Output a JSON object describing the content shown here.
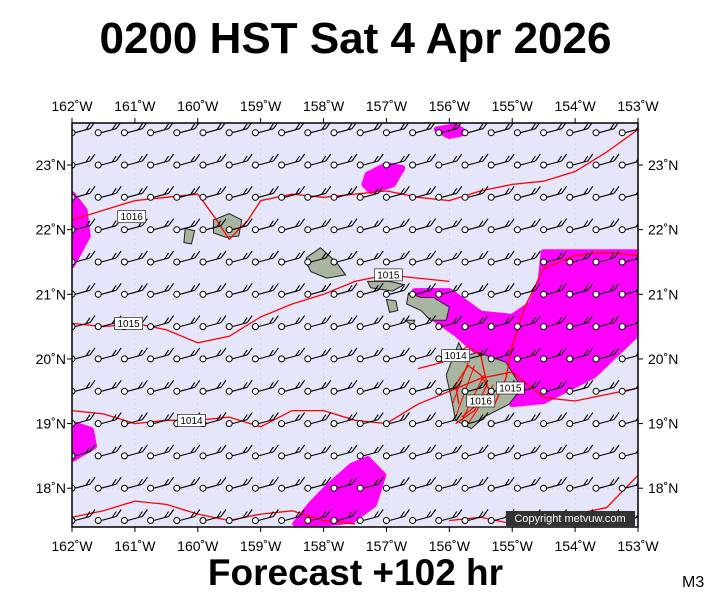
{
  "title": "0200 HST Sat 4 Apr 2026",
  "footer": "Forecast +102 hr",
  "model_tag": "M3",
  "copyright": "Copyright metvuw.com",
  "colors": {
    "ocean": "#e6e6fa",
    "precipitation": "#ff00ff",
    "isobar": "#ff0000",
    "land": "#a8b5a0",
    "wind": "#000000"
  },
  "map": {
    "lon_range": [
      -162,
      -153
    ],
    "lat_range": [
      17.4,
      23.65
    ],
    "lon_labels": [
      {
        "lon": -162,
        "text": "162˚W"
      },
      {
        "lon": -161,
        "text": "161˚W"
      },
      {
        "lon": -160,
        "text": "160˚W"
      },
      {
        "lon": -159,
        "text": "159˚W"
      },
      {
        "lon": -158,
        "text": "158˚W"
      },
      {
        "lon": -157,
        "text": "157˚W"
      },
      {
        "lon": -156,
        "text": "156˚W"
      },
      {
        "lon": -155,
        "text": "155˚W"
      },
      {
        "lon": -154,
        "text": "154˚W"
      },
      {
        "lon": -153,
        "text": "153˚W"
      }
    ],
    "lat_labels": [
      {
        "lat": 18,
        "text": "18˚N"
      },
      {
        "lat": 19,
        "text": "19˚N"
      },
      {
        "lat": 20,
        "text": "20˚N"
      },
      {
        "lat": 21,
        "text": "21˚N"
      },
      {
        "lat": 22,
        "text": "22˚N"
      },
      {
        "lat": 23,
        "text": "23˚N"
      }
    ]
  },
  "isobars": [
    {
      "label": "1016",
      "label_at": [
        -161.05,
        22.2
      ],
      "points": [
        [
          -162,
          22.15
        ],
        [
          -161.5,
          22.3
        ],
        [
          -161,
          22.45
        ],
        [
          -160.5,
          22.5
        ],
        [
          -160,
          22.55
        ],
        [
          -159.7,
          22.15
        ],
        [
          -159.5,
          21.85
        ],
        [
          -159.2,
          22.15
        ],
        [
          -159,
          22.45
        ],
        [
          -158.5,
          22.55
        ],
        [
          -158,
          22.5
        ],
        [
          -157.5,
          22.55
        ],
        [
          -157,
          22.6
        ],
        [
          -156.5,
          22.5
        ],
        [
          -156,
          22.45
        ],
        [
          -155.5,
          22.6
        ],
        [
          -155,
          22.7
        ],
        [
          -154.5,
          22.75
        ],
        [
          -154,
          22.9
        ],
        [
          -153.5,
          23.2
        ],
        [
          -153,
          23.55
        ]
      ]
    },
    {
      "label": "1015",
      "label_at": [
        -161.1,
        20.55
      ],
      "points": [
        [
          -162,
          20.55
        ],
        [
          -161.5,
          20.5
        ],
        [
          -161,
          20.55
        ],
        [
          -160.5,
          20.45
        ],
        [
          -160,
          20.25
        ],
        [
          -159.5,
          20.35
        ],
        [
          -159,
          20.65
        ],
        [
          -158.5,
          20.85
        ],
        [
          -158,
          21.0
        ],
        [
          -157.5,
          21.2
        ],
        [
          -157,
          21.3
        ],
        [
          -156.5,
          21.25
        ],
        [
          -156,
          21.2
        ]
      ]
    },
    {
      "label": "1015",
      "label_at": [
        -156.97,
        21.3
      ],
      "points": []
    },
    {
      "label": "1015",
      "label_at": [
        -155.03,
        19.55
      ],
      "points": [
        [
          -155.3,
          19.25
        ],
        [
          -155.1,
          19.7
        ],
        [
          -155.0,
          20.2
        ],
        [
          -154.8,
          20.8
        ],
        [
          -154.5,
          21.4
        ],
        [
          -154,
          21.6
        ],
        [
          -153.5,
          21.65
        ],
        [
          -153,
          21.6
        ]
      ]
    },
    {
      "label": "1014",
      "label_at": [
        -160.1,
        19.05
      ],
      "points": [
        [
          -162,
          19.2
        ],
        [
          -161.5,
          19.15
        ],
        [
          -161,
          19.0
        ],
        [
          -160.5,
          19.05
        ],
        [
          -160,
          19.05
        ],
        [
          -159.5,
          19.1
        ],
        [
          -159,
          18.95
        ],
        [
          -158.5,
          19.2
        ],
        [
          -158,
          19.2
        ],
        [
          -157.5,
          19.05
        ],
        [
          -157,
          19.0
        ],
        [
          -156.5,
          19.3
        ],
        [
          -156,
          19.5
        ],
        [
          -155.5,
          19.7
        ],
        [
          -155,
          19.8
        ],
        [
          -154.5,
          19.4
        ],
        [
          -154,
          19.35
        ],
        [
          -153.5,
          19.45
        ],
        [
          -153,
          19.55
        ]
      ]
    },
    {
      "label": "1014",
      "label_at": [
        -155.9,
        20.05
      ],
      "points": [
        [
          -156.5,
          19.85
        ],
        [
          -156.1,
          19.95
        ],
        [
          -155.7,
          20.2
        ],
        [
          -155.5,
          20.05
        ],
        [
          -155.4,
          19.6
        ],
        [
          -155.6,
          19.2
        ],
        [
          -155.9,
          19.0
        ]
      ]
    },
    {
      "label": "1016",
      "label_at": [
        -155.5,
        19.35
      ],
      "points": [
        [
          -155.8,
          19.1
        ],
        [
          -155.55,
          19.3
        ],
        [
          -155.35,
          19.5
        ],
        [
          -155.5,
          19.75
        ],
        [
          -155.7,
          19.9
        ],
        [
          -155.9,
          19.6
        ],
        [
          -155.85,
          19.3
        ]
      ]
    },
    {
      "label": "",
      "label_at": null,
      "points": [
        [
          -162,
          17.55
        ],
        [
          -161.5,
          17.65
        ],
        [
          -161,
          17.8
        ],
        [
          -160.5,
          17.75
        ],
        [
          -160,
          17.6
        ],
        [
          -159.5,
          17.5
        ],
        [
          -159,
          17.6
        ],
        [
          -158.5,
          17.65
        ],
        [
          -158,
          17.5
        ],
        [
          -157.5,
          17.45
        ]
      ]
    },
    {
      "label": "",
      "label_at": null,
      "points": [
        [
          -156,
          17.5
        ],
        [
          -155.5,
          17.55
        ],
        [
          -155,
          17.45
        ],
        [
          -154.5,
          17.5
        ],
        [
          -154,
          17.6
        ],
        [
          -153.5,
          17.7
        ],
        [
          -153.2,
          18.0
        ],
        [
          -153,
          18.2
        ]
      ]
    }
  ],
  "precip_regions": [
    [
      [
        -156.2,
        23.55
      ],
      [
        -155.9,
        23.6
      ],
      [
        -155.75,
        23.5
      ],
      [
        -156.0,
        23.45
      ]
    ],
    [
      [
        -157.3,
        22.85
      ],
      [
        -157.0,
        23.0
      ],
      [
        -156.75,
        22.95
      ],
      [
        -156.9,
        22.7
      ],
      [
        -157.25,
        22.6
      ],
      [
        -157.35,
        22.7
      ]
    ],
    [
      [
        -162,
        22.55
      ],
      [
        -161.8,
        22.3
      ],
      [
        -161.75,
        21.9
      ],
      [
        -162,
        21.45
      ]
    ],
    [
      [
        -154.5,
        21.65
      ],
      [
        -153.0,
        21.65
      ],
      [
        -153.0,
        20.4
      ],
      [
        -153.7,
        19.75
      ],
      [
        -154.2,
        19.5
      ],
      [
        -154.5,
        19.35
      ],
      [
        -155.0,
        19.3
      ],
      [
        -155.25,
        19.8
      ],
      [
        -155.55,
        20.1
      ],
      [
        -155.9,
        20.4
      ],
      [
        -156.2,
        20.6
      ],
      [
        -156.5,
        20.85
      ],
      [
        -156.55,
        21.05
      ],
      [
        -156.0,
        21.05
      ],
      [
        -155.5,
        20.7
      ],
      [
        -155.0,
        20.65
      ],
      [
        -154.7,
        20.85
      ],
      [
        -154.55,
        21.2
      ]
    ],
    [
      [
        -162,
        19.0
      ],
      [
        -161.7,
        18.9
      ],
      [
        -161.65,
        18.65
      ],
      [
        -162,
        18.45
      ]
    ],
    [
      [
        -158.45,
        17.45
      ],
      [
        -158.2,
        17.75
      ],
      [
        -157.9,
        18.05
      ],
      [
        -157.55,
        18.35
      ],
      [
        -157.3,
        18.45
      ],
      [
        -157.05,
        18.2
      ],
      [
        -157.2,
        17.75
      ],
      [
        -157.55,
        17.5
      ],
      [
        -158.0,
        17.45
      ]
    ]
  ],
  "islands": [
    {
      "name": "kauai",
      "points": [
        [
          -159.75,
          22.15
        ],
        [
          -159.5,
          22.25
        ],
        [
          -159.3,
          22.15
        ],
        [
          -159.35,
          21.9
        ],
        [
          -159.55,
          21.88
        ],
        [
          -159.75,
          21.95
        ]
      ]
    },
    {
      "name": "niihau",
      "points": [
        [
          -160.2,
          22.02
        ],
        [
          -160.05,
          21.98
        ],
        [
          -160.1,
          21.78
        ],
        [
          -160.22,
          21.8
        ]
      ]
    },
    {
      "name": "oahu",
      "points": [
        [
          -158.27,
          21.57
        ],
        [
          -158.05,
          21.72
        ],
        [
          -157.8,
          21.5
        ],
        [
          -157.65,
          21.3
        ],
        [
          -157.95,
          21.25
        ],
        [
          -158.2,
          21.35
        ],
        [
          -158.28,
          21.5
        ]
      ]
    },
    {
      "name": "molokai",
      "points": [
        [
          -157.3,
          21.2
        ],
        [
          -156.95,
          21.2
        ],
        [
          -156.72,
          21.15
        ],
        [
          -156.9,
          21.05
        ],
        [
          -157.25,
          21.1
        ]
      ]
    },
    {
      "name": "lanai",
      "points": [
        [
          -157.0,
          20.92
        ],
        [
          -156.85,
          20.9
        ],
        [
          -156.82,
          20.75
        ],
        [
          -156.95,
          20.72
        ]
      ]
    },
    {
      "name": "maui",
      "points": [
        [
          -156.65,
          21.02
        ],
        [
          -156.45,
          20.95
        ],
        [
          -156.25,
          20.95
        ],
        [
          -156.0,
          20.8
        ],
        [
          -156.05,
          20.6
        ],
        [
          -156.3,
          20.6
        ],
        [
          -156.45,
          20.75
        ],
        [
          -156.68,
          20.85
        ]
      ]
    },
    {
      "name": "kahoolawe",
      "points": [
        [
          -156.7,
          20.6
        ],
        [
          -156.55,
          20.6
        ],
        [
          -156.58,
          20.5
        ]
      ]
    },
    {
      "name": "hawaii",
      "points": [
        [
          -155.85,
          20.25
        ],
        [
          -155.75,
          20.05
        ],
        [
          -155.55,
          20.1
        ],
        [
          -155.1,
          19.95
        ],
        [
          -154.85,
          19.55
        ],
        [
          -155.05,
          19.3
        ],
        [
          -155.45,
          19.1
        ],
        [
          -155.65,
          18.92
        ],
        [
          -155.9,
          19.05
        ],
        [
          -155.97,
          19.4
        ],
        [
          -156.05,
          19.75
        ],
        [
          -155.95,
          20.0
        ]
      ]
    }
  ],
  "wind_grid": {
    "lon_start": -162.0,
    "lon_step": 0.4166,
    "lon_count": 22,
    "lat_start": 17.5,
    "lat_step": 0.5,
    "lat_count": 13,
    "default_dir": 70,
    "default_speed": 15
  }
}
